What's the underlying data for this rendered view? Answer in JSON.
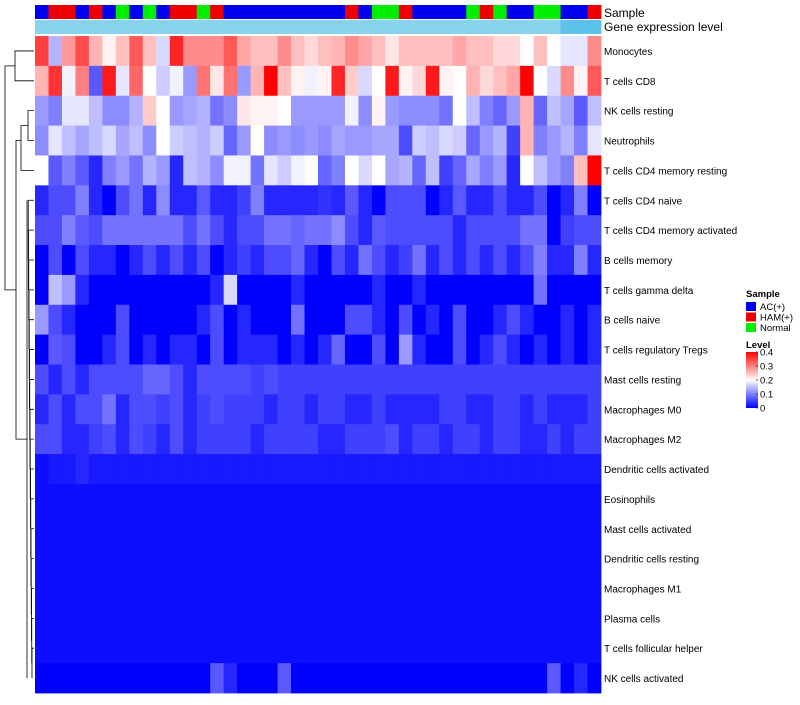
{
  "chart_data": {
    "type": "heatmap",
    "annotation_labels": {
      "sample": "Sample",
      "gene_expression": "Gene expression level"
    },
    "sample_groups": [
      "AC",
      "HAM",
      "HAM",
      "AC",
      "HAM",
      "AC",
      "Normal",
      "AC",
      "Normal",
      "AC",
      "HAM",
      "HAM",
      "Normal",
      "HAM",
      "AC",
      "AC",
      "AC",
      "AC",
      "AC",
      "AC",
      "AC",
      "AC",
      "AC",
      "HAM",
      "AC",
      "Normal",
      "Normal",
      "HAM",
      "AC",
      "AC",
      "AC",
      "AC",
      "Normal",
      "HAM",
      "Normal",
      "AC",
      "AC",
      "Normal",
      "Normal",
      "AC",
      "AC",
      "HAM"
    ],
    "gene_expression_colors": [
      "#8ad3ee",
      "#8ad3ee",
      "#8ad3ee",
      "#8ad3ee",
      "#8ad3ee",
      "#8ad3ee",
      "#8ad3ee",
      "#8ad3ee",
      "#8ad3ee",
      "#8ad3ee",
      "#8ad3ee",
      "#8ad3ee",
      "#8ad3ee",
      "#8ad3ee",
      "#8ad3ee",
      "#8ad3ee",
      "#8ad3ee",
      "#8ad3ee",
      "#8ad3ee",
      "#8ad3ee",
      "#8ad3ee",
      "#8ad3ee",
      "#8ad3ee",
      "#8ad3ee",
      "#8ad3ee",
      "#8ad3ee",
      "#8ad3ee",
      "#8ad3ee",
      "#8ad3ee",
      "#8ad3ee",
      "#8ad3ee",
      "#8ad3ee",
      "#8ad3ee",
      "#8ad3ee",
      "#8ad3ee",
      "#8ad3ee",
      "#8ad3ee",
      "#8ad3ee",
      "#8ad3ee",
      "#5ec3ea",
      "#5ec3ea",
      "#5ec3ea"
    ],
    "rows": [
      {
        "label": "Monocytes",
        "values": [
          0.35,
          0.14,
          0.28,
          0.34,
          0.26,
          0.21,
          0.25,
          0.33,
          0.25,
          0.17,
          0.37,
          0.29,
          0.29,
          0.29,
          0.33,
          0.27,
          0.25,
          0.25,
          0.29,
          0.25,
          0.23,
          0.25,
          0.26,
          0.29,
          0.27,
          0.25,
          0.22,
          0.25,
          0.25,
          0.25,
          0.25,
          0.27,
          0.25,
          0.25,
          0.23,
          0.23,
          0.2,
          0.25,
          0.2,
          0.18,
          0.18,
          0.29
        ]
      },
      {
        "label": "T cells CD8",
        "values": [
          0.26,
          0.36,
          0.19,
          0.3,
          0.07,
          0.38,
          0.18,
          0.32,
          0.2,
          0.16,
          0.19,
          0.12,
          0.31,
          0.22,
          0.31,
          0.12,
          0.26,
          0.4,
          0.25,
          0.21,
          0.19,
          0.21,
          0.37,
          0.24,
          0.17,
          0.2,
          0.38,
          0.21,
          0.23,
          0.38,
          0.21,
          0.2,
          0.26,
          0.23,
          0.25,
          0.27,
          0.4,
          0.2,
          0.17,
          0.29,
          0.21,
          0.33
        ]
      },
      {
        "label": "NK cells resting",
        "values": [
          0.12,
          0.1,
          0.18,
          0.18,
          0.15,
          0.11,
          0.11,
          0.14,
          0.24,
          0.2,
          0.12,
          0.13,
          0.14,
          0.09,
          0.11,
          0.22,
          0.21,
          0.21,
          0.2,
          0.12,
          0.12,
          0.12,
          0.12,
          0.19,
          0.11,
          0.21,
          0.12,
          0.11,
          0.11,
          0.11,
          0.09,
          0.2,
          0.15,
          0.1,
          0.08,
          0.12,
          0.26,
          0.08,
          0.15,
          0.13,
          0.07,
          0.15
        ]
      },
      {
        "label": "Neutrophils",
        "values": [
          0.11,
          0.18,
          0.15,
          0.13,
          0.15,
          0.17,
          0.13,
          0.15,
          0.11,
          0.2,
          0.16,
          0.15,
          0.14,
          0.16,
          0.08,
          0.12,
          0.2,
          0.11,
          0.12,
          0.11,
          0.12,
          0.11,
          0.13,
          0.12,
          0.12,
          0.13,
          0.13,
          0.06,
          0.16,
          0.15,
          0.17,
          0.16,
          0.08,
          0.12,
          0.14,
          0.05,
          0.26,
          0.1,
          0.12,
          0.14,
          0.1,
          0.18
        ]
      },
      {
        "label": "T cells CD4 memory resting",
        "values": [
          0.2,
          0.07,
          0.1,
          0.07,
          0.03,
          0.1,
          0.12,
          0.09,
          0.14,
          0.12,
          0.03,
          0.15,
          0.14,
          0.11,
          0.19,
          0.19,
          0.09,
          0.18,
          0.16,
          0.19,
          0.2,
          0.08,
          0.1,
          0.2,
          0.17,
          0.2,
          0.13,
          0.14,
          0.08,
          0.15,
          0.05,
          0.08,
          0.13,
          0.1,
          0.12,
          0.03,
          0.2,
          0.15,
          0.12,
          0.1,
          0.25,
          0.4
        ]
      },
      {
        "label": "T cells CD4 naive",
        "values": [
          0.03,
          0.06,
          0.06,
          0.1,
          0.03,
          0.0,
          0.06,
          0.09,
          0.03,
          0.11,
          0.03,
          0.03,
          0.07,
          0.03,
          0.03,
          0.05,
          0.1,
          0.03,
          0.03,
          0.03,
          0.03,
          0.04,
          0.03,
          0.07,
          0.03,
          0.0,
          0.06,
          0.06,
          0.06,
          0.0,
          0.03,
          0.07,
          0.03,
          0.03,
          0.06,
          0.03,
          0.03,
          0.06,
          0.0,
          0.03,
          0.1,
          0.0
        ]
      },
      {
        "label": "T cells CD4 memory activated",
        "values": [
          0.06,
          0.06,
          0.1,
          0.07,
          0.06,
          0.09,
          0.09,
          0.09,
          0.09,
          0.09,
          0.09,
          0.06,
          0.09,
          0.06,
          0.03,
          0.06,
          0.06,
          0.09,
          0.09,
          0.08,
          0.09,
          0.09,
          0.11,
          0.06,
          0.03,
          0.07,
          0.06,
          0.06,
          0.06,
          0.06,
          0.06,
          0.03,
          0.06,
          0.06,
          0.06,
          0.06,
          0.09,
          0.09,
          0.0,
          0.05,
          0.06,
          0.06
        ]
      },
      {
        "label": "B cells memory",
        "values": [
          0.0,
          0.06,
          0.0,
          0.06,
          0.03,
          0.03,
          0.0,
          0.03,
          0.06,
          0.03,
          0.06,
          0.03,
          0.06,
          0.0,
          0.03,
          0.05,
          0.03,
          0.06,
          0.06,
          0.08,
          0.03,
          0.0,
          0.06,
          0.03,
          0.09,
          0.06,
          0.03,
          0.05,
          0.09,
          0.03,
          0.06,
          0.03,
          0.06,
          0.03,
          0.06,
          0.03,
          0.06,
          0.1,
          0.03,
          0.03,
          0.1,
          0.03
        ]
      },
      {
        "label": "T cells gamma delta",
        "values": [
          0.0,
          0.15,
          0.12,
          0.03,
          0.0,
          0.0,
          0.0,
          0.0,
          0.0,
          0.0,
          0.0,
          0.0,
          0.0,
          0.03,
          0.17,
          0.0,
          0.0,
          0.0,
          0.0,
          0.03,
          0.0,
          0.0,
          0.0,
          0.0,
          0.0,
          0.03,
          0.0,
          0.0,
          0.03,
          0.0,
          0.0,
          0.0,
          0.0,
          0.0,
          0.0,
          0.0,
          0.0,
          0.09,
          0.0,
          0.0,
          0.0,
          0.0
        ]
      },
      {
        "label": "B cells naive",
        "values": [
          0.12,
          0.06,
          0.03,
          0.0,
          0.0,
          0.0,
          0.06,
          0.0,
          0.0,
          0.0,
          0.0,
          0.0,
          0.03,
          0.06,
          0.0,
          0.03,
          0.0,
          0.0,
          0.0,
          0.09,
          0.0,
          0.0,
          0.0,
          0.06,
          0.06,
          0.03,
          0.0,
          0.06,
          0.0,
          0.03,
          0.0,
          0.06,
          0.0,
          0.0,
          0.03,
          0.06,
          0.03,
          0.0,
          0.0,
          0.03,
          0.0,
          0.03
        ]
      },
      {
        "label": "T cells regulatory  Tregs",
        "values": [
          0.0,
          0.07,
          0.06,
          0.0,
          0.0,
          0.03,
          0.06,
          0.0,
          0.03,
          0.0,
          0.03,
          0.03,
          0.0,
          0.06,
          0.0,
          0.03,
          0.03,
          0.03,
          0.0,
          0.03,
          0.0,
          0.03,
          0.08,
          0.0,
          0.0,
          0.06,
          0.0,
          0.12,
          0.03,
          0.0,
          0.0,
          0.06,
          0.0,
          0.03,
          0.06,
          0.03,
          0.0,
          0.03,
          0.0,
          0.03,
          0.0,
          0.03
        ]
      },
      {
        "label": "Mast cells resting",
        "values": [
          0.06,
          0.03,
          0.06,
          0.03,
          0.06,
          0.06,
          0.06,
          0.06,
          0.08,
          0.08,
          0.06,
          0.03,
          0.06,
          0.06,
          0.06,
          0.06,
          0.05,
          0.06,
          0.05,
          0.05,
          0.05,
          0.05,
          0.05,
          0.05,
          0.05,
          0.05,
          0.05,
          0.05,
          0.05,
          0.05,
          0.05,
          0.05,
          0.05,
          0.05,
          0.05,
          0.05,
          0.05,
          0.05,
          0.05,
          0.05,
          0.05,
          0.05
        ]
      },
      {
        "label": "Macrophages M0",
        "values": [
          0.03,
          0.06,
          0.03,
          0.06,
          0.06,
          0.09,
          0.03,
          0.06,
          0.06,
          0.05,
          0.06,
          0.03,
          0.05,
          0.06,
          0.05,
          0.05,
          0.05,
          0.03,
          0.05,
          0.05,
          0.03,
          0.05,
          0.05,
          0.03,
          0.03,
          0.05,
          0.03,
          0.03,
          0.03,
          0.03,
          0.05,
          0.05,
          0.03,
          0.03,
          0.05,
          0.05,
          0.03,
          0.05,
          0.03,
          0.03,
          0.03,
          0.05
        ]
      },
      {
        "label": "Macrophages M2",
        "values": [
          0.06,
          0.06,
          0.03,
          0.03,
          0.05,
          0.06,
          0.03,
          0.06,
          0.05,
          0.03,
          0.06,
          0.03,
          0.05,
          0.05,
          0.05,
          0.05,
          0.03,
          0.05,
          0.05,
          0.05,
          0.05,
          0.03,
          0.03,
          0.05,
          0.05,
          0.05,
          0.06,
          0.03,
          0.05,
          0.05,
          0.03,
          0.05,
          0.05,
          0.03,
          0.05,
          0.05,
          0.03,
          0.03,
          0.05,
          0.03,
          0.05,
          0.05
        ]
      },
      {
        "label": "Dendritic cells activated",
        "values": [
          0.01,
          0.02,
          0.02,
          0.03,
          0.02,
          0.02,
          0.02,
          0.02,
          0.02,
          0.02,
          0.02,
          0.02,
          0.02,
          0.02,
          0.02,
          0.02,
          0.02,
          0.02,
          0.02,
          0.02,
          0.02,
          0.02,
          0.02,
          0.02,
          0.02,
          0.02,
          0.02,
          0.02,
          0.02,
          0.02,
          0.02,
          0.02,
          0.02,
          0.02,
          0.02,
          0.02,
          0.02,
          0.02,
          0.02,
          0.02,
          0.02,
          0.02
        ]
      },
      {
        "label": "Eosinophils",
        "values": [
          0.01,
          0.01,
          0.01,
          0.01,
          0.01,
          0.01,
          0.01,
          0.01,
          0.01,
          0.01,
          0.01,
          0.01,
          0.01,
          0.01,
          0.01,
          0.01,
          0.01,
          0.01,
          0.01,
          0.01,
          0.01,
          0.01,
          0.01,
          0.01,
          0.01,
          0.01,
          0.01,
          0.01,
          0.01,
          0.01,
          0.01,
          0.01,
          0.01,
          0.01,
          0.01,
          0.01,
          0.01,
          0.01,
          0.01,
          0.01,
          0.01,
          0.01
        ]
      },
      {
        "label": "Mast cells activated",
        "values": [
          0.01,
          0.01,
          0.01,
          0.01,
          0.01,
          0.01,
          0.01,
          0.01,
          0.01,
          0.01,
          0.01,
          0.01,
          0.01,
          0.01,
          0.01,
          0.01,
          0.01,
          0.01,
          0.01,
          0.01,
          0.01,
          0.01,
          0.01,
          0.01,
          0.01,
          0.01,
          0.01,
          0.01,
          0.01,
          0.01,
          0.01,
          0.01,
          0.01,
          0.01,
          0.01,
          0.01,
          0.01,
          0.01,
          0.01,
          0.01,
          0.01,
          0.01
        ]
      },
      {
        "label": "Dendritic cells resting",
        "values": [
          0.01,
          0.01,
          0.01,
          0.01,
          0.01,
          0.01,
          0.01,
          0.01,
          0.01,
          0.01,
          0.01,
          0.01,
          0.01,
          0.01,
          0.01,
          0.01,
          0.01,
          0.01,
          0.01,
          0.01,
          0.01,
          0.01,
          0.01,
          0.01,
          0.01,
          0.01,
          0.01,
          0.01,
          0.01,
          0.01,
          0.01,
          0.01,
          0.01,
          0.01,
          0.01,
          0.01,
          0.01,
          0.01,
          0.01,
          0.01,
          0.01,
          0.01
        ]
      },
      {
        "label": "Macrophages M1",
        "values": [
          0.01,
          0.01,
          0.01,
          0.01,
          0.01,
          0.01,
          0.01,
          0.01,
          0.01,
          0.01,
          0.01,
          0.01,
          0.01,
          0.01,
          0.01,
          0.01,
          0.01,
          0.01,
          0.01,
          0.01,
          0.01,
          0.01,
          0.01,
          0.01,
          0.01,
          0.01,
          0.01,
          0.01,
          0.01,
          0.01,
          0.01,
          0.01,
          0.01,
          0.01,
          0.01,
          0.01,
          0.01,
          0.01,
          0.01,
          0.01,
          0.01,
          0.01
        ]
      },
      {
        "label": "Plasma cells",
        "values": [
          0.01,
          0.01,
          0.01,
          0.01,
          0.01,
          0.01,
          0.01,
          0.01,
          0.01,
          0.01,
          0.01,
          0.01,
          0.01,
          0.01,
          0.01,
          0.01,
          0.01,
          0.01,
          0.01,
          0.01,
          0.01,
          0.01,
          0.01,
          0.01,
          0.01,
          0.01,
          0.01,
          0.01,
          0.01,
          0.01,
          0.01,
          0.01,
          0.01,
          0.01,
          0.01,
          0.01,
          0.01,
          0.01,
          0.01,
          0.01,
          0.01,
          0.01
        ]
      },
      {
        "label": "T cells follicular helper",
        "values": [
          0.01,
          0.01,
          0.01,
          0.01,
          0.01,
          0.01,
          0.01,
          0.01,
          0.01,
          0.01,
          0.01,
          0.01,
          0.01,
          0.01,
          0.01,
          0.01,
          0.01,
          0.01,
          0.01,
          0.01,
          0.01,
          0.01,
          0.01,
          0.01,
          0.01,
          0.01,
          0.01,
          0.01,
          0.01,
          0.01,
          0.01,
          0.01,
          0.01,
          0.01,
          0.01,
          0.01,
          0.01,
          0.01,
          0.01,
          0.01,
          0.01,
          0.01
        ]
      },
      {
        "label": "NK cells activated",
        "values": [
          0.0,
          0.0,
          0.0,
          0.0,
          0.0,
          0.0,
          0.0,
          0.0,
          0.0,
          0.0,
          0.0,
          0.0,
          0.0,
          0.07,
          0.03,
          0.0,
          0.0,
          0.0,
          0.07,
          0.0,
          0.0,
          0.0,
          0.0,
          0.0,
          0.0,
          0.0,
          0.0,
          0.0,
          0.0,
          0.0,
          0.0,
          0.0,
          0.0,
          0.0,
          0.0,
          0.0,
          0.0,
          0.0,
          0.07,
          0.0,
          0.03,
          0.0
        ]
      }
    ],
    "color_scale": {
      "min": 0,
      "max": 0.4,
      "colors": [
        "#0000ff",
        "#ffffff",
        "#ff0000"
      ]
    },
    "legend": {
      "sample_title": "Sample",
      "sample_entries": [
        {
          "key": "AC",
          "label": "AC(+)",
          "color": "#0000ee"
        },
        {
          "key": "HAM",
          "label": "HAM(+)",
          "color": "#ee0000"
        },
        {
          "key": "Normal",
          "label": "Normal",
          "color": "#00ee00"
        }
      ],
      "level_title": "Level",
      "level_ticks": [
        "0.4",
        "0.3",
        "0.2",
        "0.1",
        "0"
      ],
      "level_values": [
        0.4,
        0.3,
        0.2,
        0.1,
        0
      ]
    },
    "dendrogram": "row clustering tree (left)"
  }
}
